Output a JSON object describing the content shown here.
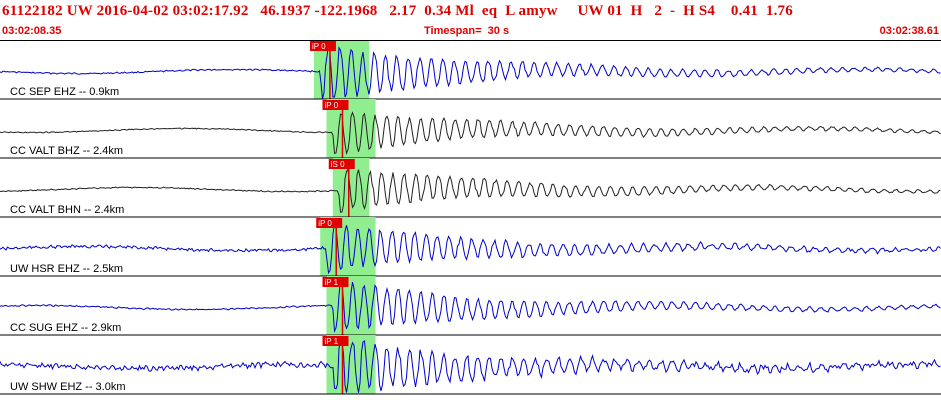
{
  "header": {
    "title": "61122182 UW 2016-04-02 03:02:17.92   46.1937 -122.1968   2.17  0.34 Ml  eq  L amyw     UW 01  H   2  -  H S4    0.41  1.76",
    "start_time": "03:02:08.35",
    "timespan": "Timespan=  30 s",
    "end_time": "03:02:38.61"
  },
  "colors": {
    "trace": "#0000cc",
    "pick": "#e00000",
    "window": "#90ee90",
    "header_text": "#e00000"
  },
  "traces": [
    {
      "label": "CC SEP EHZ -- 0.9km",
      "pick_label": "iP 0",
      "color": "#0000cc",
      "p_time_s": 10.2,
      "end_time_s": 11.2,
      "amp_scale": 1.0,
      "noise": 0.1
    },
    {
      "label": "CC VALT BHZ -- 2.4km",
      "pick_label": "iP 0",
      "color": "#222222",
      "p_time_s": 10.6,
      "end_time_s": 11.4,
      "amp_scale": 0.7,
      "noise": 0.08
    },
    {
      "label": "CC VALT BHN -- 2.4km",
      "pick_label": "iS 0",
      "color": "#222222",
      "p_time_s": 10.8,
      "end_time_s": 11.2,
      "amp_scale": 0.7,
      "noise": 0.08
    },
    {
      "label": "UW HSR EHZ -- 2.5km",
      "pick_label": "iP 0",
      "color": "#0000cc",
      "p_time_s": 10.4,
      "end_time_s": 11.4,
      "amp_scale": 0.8,
      "noise": 0.2
    },
    {
      "label": "CC SUG EHZ -- 2.9km",
      "pick_label": "iP 1",
      "color": "#0000cc",
      "p_time_s": 10.6,
      "end_time_s": 11.4,
      "amp_scale": 0.9,
      "noise": 0.1
    },
    {
      "label": "UW SHW EHZ -- 3.0km",
      "pick_label": "iP 1",
      "color": "#0000cc",
      "p_time_s": 10.6,
      "end_time_s": 11.4,
      "amp_scale": 1.0,
      "noise": 0.4
    }
  ]
}
